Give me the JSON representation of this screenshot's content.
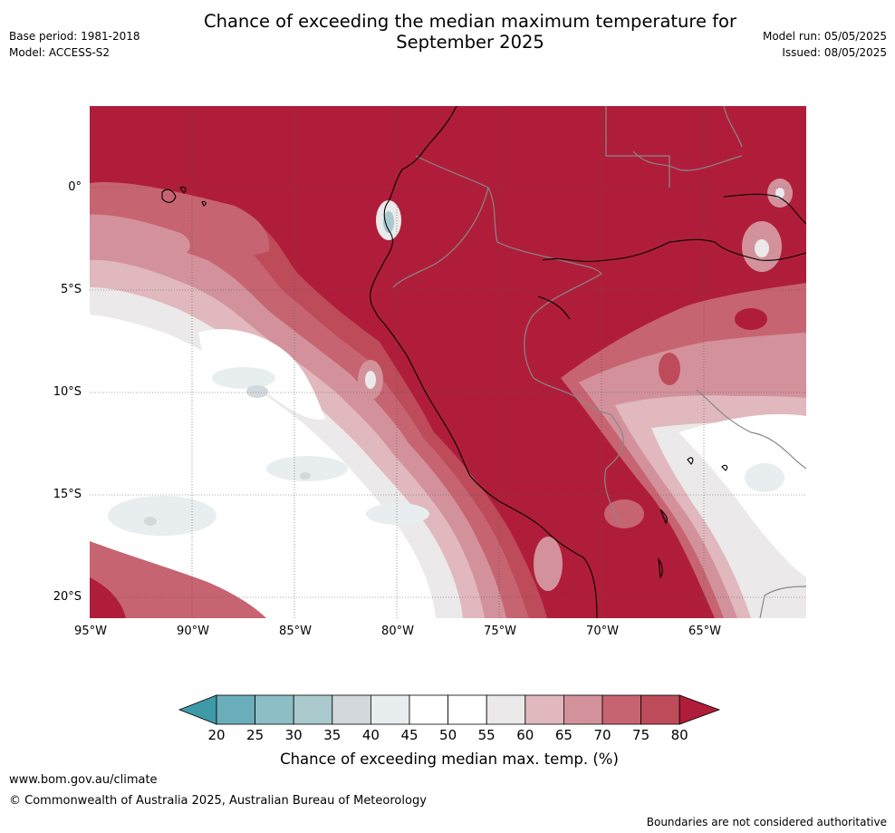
{
  "header": {
    "title_line1": "Chance of exceeding the median maximum temperature for",
    "title_line2": "September 2025",
    "left_line1": "Base period: 1981-2018",
    "left_line2": "Model: ACCESS-S2",
    "right_line1": "Model run: 05/05/2025",
    "right_line2": "Issued: 08/05/2025"
  },
  "map": {
    "lat_ticks": [
      "0°",
      "5°S",
      "10°S",
      "15°S",
      "20°S"
    ],
    "lon_ticks": [
      "95°W",
      "90°W",
      "85°W",
      "80°W",
      "75°W",
      "70°W",
      "65°W"
    ],
    "extent": {
      "west": -95,
      "east": -60,
      "north": 4,
      "south": -21
    },
    "background_category": "above 80%"
  },
  "colorbar": {
    "ticks": [
      "20",
      "25",
      "30",
      "35",
      "40",
      "45",
      "50",
      "55",
      "60",
      "65",
      "70",
      "75",
      "80"
    ],
    "colors": [
      "#3f9aa8",
      "#6aaebb",
      "#8dbdc5",
      "#a9c9cd",
      "#d2d8db",
      "#e8eef0",
      "#ffffff",
      "#ffffff",
      "#ebe9ea",
      "#e0b8be",
      "#d3929b",
      "#c76471",
      "#bd4b5a",
      "#b01d3a"
    ],
    "label": "Chance of exceeding median max. temp. (%)"
  },
  "footer": {
    "url": "www.bom.gov.au/climate",
    "copyright": "© Commonwealth of Australia 2025, Australian Bureau of Meteorology",
    "note": "Boundaries are not considered authoritative"
  }
}
